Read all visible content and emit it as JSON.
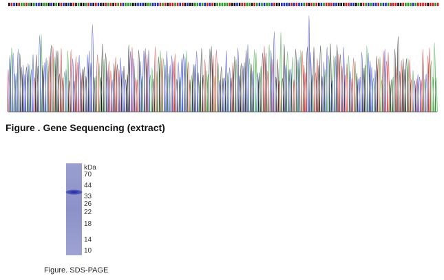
{
  "figure1": {
    "caption": "Figure . Gene Sequencing (extract)"
  },
  "figure2": {
    "caption": "Figure. SDS-PAGE",
    "unit": "kDa",
    "markers": [
      70,
      44,
      33,
      26,
      22,
      18,
      14,
      10
    ]
  }
}
